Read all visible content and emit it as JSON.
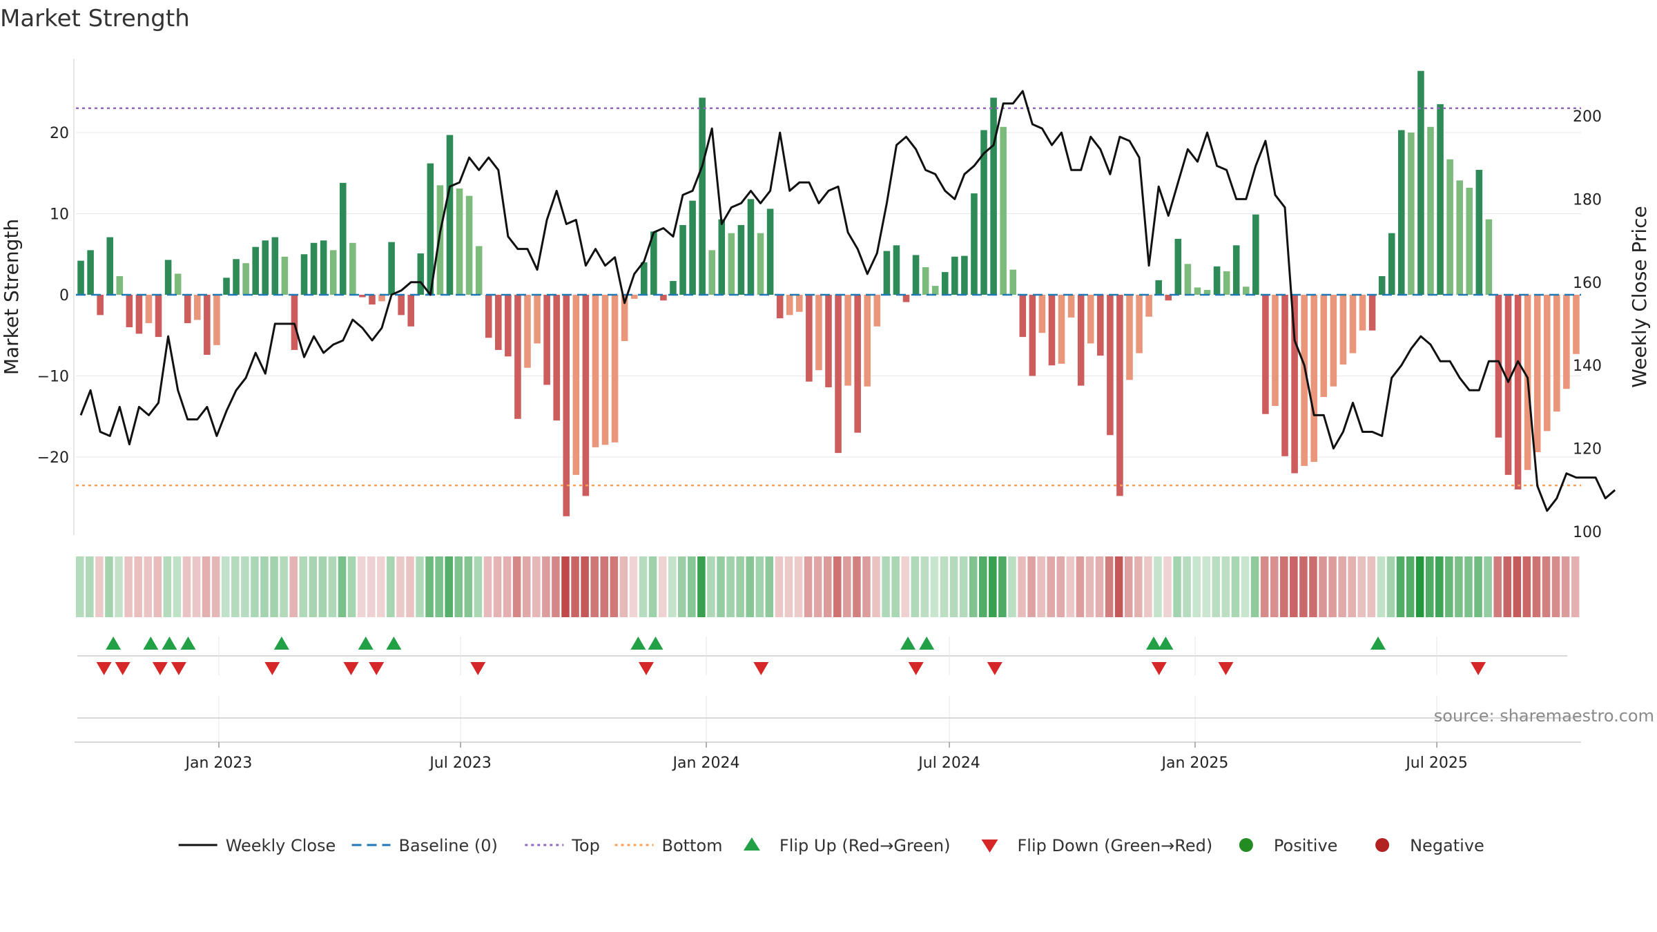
{
  "chart_data": {
    "type": "bar",
    "title": "Market Strength",
    "ylabel_left": "Market Strength",
    "ylabel_right": "Weekly Close Price",
    "ylim_left": [
      -30,
      30
    ],
    "ylim_right": [
      100,
      210
    ],
    "yticks_left": [
      -20,
      -10,
      0,
      10,
      20
    ],
    "yticks_left_labels": [
      "−20",
      "−10",
      "0",
      "10",
      "20"
    ],
    "yticks_right": [
      100,
      120,
      140,
      160,
      180,
      200
    ],
    "yticks_right_labels": [
      "100",
      "120",
      "140",
      "160",
      "180",
      "200"
    ],
    "x_start": "2022-09-16",
    "x_end": "2025-10-17",
    "week_count": 158,
    "xticks": [
      {
        "date": "2023-01-01",
        "label": "Jan 2023"
      },
      {
        "date": "2023-07-01",
        "label": "Jul 2023"
      },
      {
        "date": "2024-01-01",
        "label": "Jan 2024"
      },
      {
        "date": "2024-07-01",
        "label": "Jul 2024"
      },
      {
        "date": "2025-01-01",
        "label": "Jan 2025"
      },
      {
        "date": "2025-07-01",
        "label": "Jul 2025"
      }
    ],
    "top_level": 23,
    "bottom_level": -23.5,
    "strength": [
      4.2,
      5.5,
      -2.5,
      7.1,
      2.3,
      -4,
      -4.8,
      -3.5,
      -5.2,
      4.3,
      2.6,
      -3.5,
      -3.1,
      -7.4,
      -6.2,
      2.1,
      4.4,
      3.9,
      5.9,
      6.7,
      7.1,
      4.7,
      -6.8,
      5,
      6.4,
      6.7,
      5.5,
      13.8,
      6.4,
      -0.3,
      -1.2,
      -0.8,
      6.5,
      -2.5,
      -3.9,
      5.1,
      16.2,
      13.5,
      19.7,
      13.1,
      12.2,
      6,
      -5.3,
      -6.8,
      -7.6,
      -15.3,
      -9,
      -6,
      -11.1,
      -15.5,
      -27.3,
      -22.2,
      -24.8,
      -18.8,
      -18.5,
      -18.2,
      -5.7,
      -0.5,
      4,
      7.8,
      -0.7,
      1.7,
      8.6,
      11.6,
      24.3,
      5.5,
      9.3,
      7.6,
      8.6,
      11.8,
      7.6,
      10.6,
      -2.9,
      -2.5,
      -2.1,
      -10.7,
      -9.3,
      -11.4,
      -19.5,
      -11.2,
      -17,
      -11.3,
      -3.9,
      5.4,
      6.1,
      -0.9,
      4.9,
      3.4,
      1.1,
      2.8,
      4.7,
      4.8,
      12.5,
      20.3,
      24.3,
      20.7,
      3.1,
      -5.2,
      -10,
      -4.7,
      -8.7,
      -8.5,
      -2.8,
      -11.2,
      -6,
      -7.5,
      -17.3,
      -24.8,
      -10.5,
      -7.2,
      -2.7,
      1.8,
      -0.7,
      6.9,
      3.8,
      0.9,
      0.6,
      3.5,
      2.9,
      6.1,
      1,
      9.9,
      -14.7,
      -13.7,
      -19.9,
      -22,
      -21.1,
      -20.6,
      -12.6,
      -11.3,
      -8.6,
      -7.2,
      -4.4,
      -4.4,
      2.3,
      7.6,
      20.3,
      20,
      27.6,
      20.7,
      23.5,
      16.7,
      14.1,
      13.2,
      15.4,
      9.3,
      -17.6,
      -22.2,
      -24,
      -21.6,
      -19.4,
      -16.8,
      -14.4,
      -11.6,
      -7.3
    ],
    "weekly_close": [
      128,
      134,
      124,
      123,
      130,
      121,
      130,
      128,
      131,
      147,
      134,
      127,
      127,
      130,
      123,
      129,
      134,
      137,
      143,
      138,
      150,
      150,
      150,
      142,
      147,
      143,
      145,
      146,
      151,
      149,
      146,
      149,
      157,
      158,
      160,
      160,
      157,
      172,
      183,
      184,
      190,
      187,
      190,
      187,
      171,
      168,
      168,
      163,
      175,
      182,
      174,
      175,
      164,
      168,
      164,
      166,
      155,
      162,
      165,
      172,
      173,
      171,
      181,
      182,
      188,
      197,
      174,
      178,
      179,
      182,
      179,
      182,
      196,
      182,
      184,
      184,
      179,
      182,
      183,
      172,
      168,
      162,
      167,
      179,
      193,
      195,
      192,
      187,
      186,
      182,
      180,
      186,
      188,
      191,
      193,
      203,
      203,
      206,
      198,
      197,
      193,
      196,
      187,
      187,
      195,
      192,
      186,
      195,
      194,
      190,
      164,
      183,
      176,
      184,
      192,
      189,
      196,
      188,
      187,
      180,
      180,
      188,
      194,
      181,
      178,
      146,
      140,
      128,
      128,
      120,
      124,
      131,
      124,
      124,
      123,
      137,
      140,
      144,
      147,
      145,
      141,
      141,
      137,
      134,
      134,
      141,
      141,
      136,
      141,
      137,
      111,
      105,
      108,
      114,
      113,
      113,
      113,
      108,
      110
    ],
    "flip_up_dates": [
      "2022-10-14",
      "2022-11-11",
      "2022-11-25",
      "2022-12-09",
      "2023-02-17",
      "2023-04-21",
      "2023-05-12",
      "2023-11-11",
      "2023-11-24",
      "2024-05-31",
      "2024-06-14",
      "2024-12-01",
      "2024-12-10",
      "2025-05-18"
    ],
    "flip_down_dates": [
      "2022-10-07",
      "2022-10-21",
      "2022-11-18",
      "2022-12-02",
      "2023-02-10",
      "2023-04-10",
      "2023-04-29",
      "2023-07-14",
      "2023-11-17",
      "2024-02-11",
      "2024-06-06",
      "2024-08-04",
      "2024-12-05",
      "2025-01-24",
      "2025-08-01"
    ],
    "legend": [
      {
        "label": "Weekly Close",
        "kind": "line",
        "color": "#111111"
      },
      {
        "label": "Baseline (0)",
        "kind": "dash",
        "color": "#1f77b4"
      },
      {
        "label": "Top",
        "kind": "dot",
        "color": "#9467bd"
      },
      {
        "label": "Bottom",
        "kind": "dot",
        "color": "#ff9f55"
      },
      {
        "label": "Flip Up (Red→Green)",
        "kind": "tri-up",
        "color": "#22a045"
      },
      {
        "label": "Flip Down (Green→Red)",
        "kind": "tri-down",
        "color": "#d62728"
      },
      {
        "label": "Positive",
        "kind": "dot-marker",
        "color": "#228b22"
      },
      {
        "label": "Negative",
        "kind": "dot-marker",
        "color": "#b22222"
      }
    ],
    "source": "source: sharemaestro.com"
  },
  "colors": {
    "pos_dark": "#2e8b57",
    "pos_light": "#7dbb7d",
    "neg_dark": "#cd5c5c",
    "neg_light": "#e9967a",
    "line": "#111111",
    "baseline": "#1f77b4",
    "top": "#9467bd",
    "bottom": "#ff9f55",
    "flip_up": "#22a045",
    "flip_down": "#d62728",
    "grid": "#e8e8e8"
  }
}
